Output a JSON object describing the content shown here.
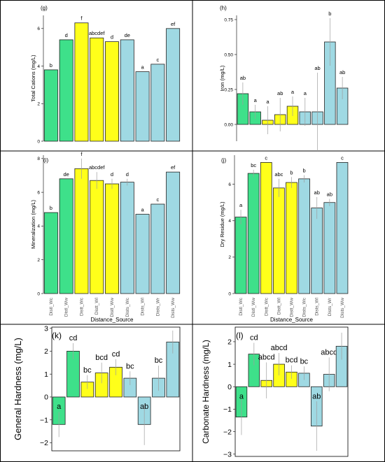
{
  "colors": {
    "green": "#3ee08a",
    "yellow": "#ffff1a",
    "blue": "#9fd9e3",
    "border": "#222222",
    "grid_border": "#000000",
    "error": "#9e9e9e"
  },
  "chart_data": [
    {
      "panel": "(g)",
      "type": "bar",
      "categories": [
        "Distl_Wc",
        "Distl_Ww",
        "Distt_Wc",
        "Distt_Wl",
        "Distt_Ww",
        "Dists_Wc",
        "Dists_Wl",
        "Dists_Wr",
        "Dists_Ww"
      ],
      "bar_colors": [
        "green",
        "green",
        "yellow",
        "yellow",
        "yellow",
        "blue",
        "blue",
        "blue",
        "blue"
      ],
      "values": [
        3.8,
        5.4,
        6.3,
        5.5,
        5.3,
        5.4,
        3.7,
        4.1,
        6.0
      ],
      "errors": [
        0.0,
        0.0,
        0.0,
        0.0,
        0.0,
        0.0,
        0.0,
        0.0,
        0.0
      ],
      "labels": [
        "b",
        "d",
        "f",
        "abcdef",
        "d",
        "de",
        "a",
        "c",
        "ef"
      ],
      "ylabel": "Total Cations (mg/L)",
      "xlabel": "",
      "ylim": [
        0,
        6.7
      ],
      "yticks": [
        0,
        2,
        4,
        6
      ],
      "ytick_labels": [
        "0",
        "2",
        "4",
        "6"
      ],
      "show_x_ticks": false
    },
    {
      "panel": "(h)",
      "type": "bar",
      "categories": [
        "Distl_Wc",
        "Distl_Ww",
        "Distt_Wc",
        "Distt_Wl",
        "Distt_Ww",
        "Dists_Wc",
        "Dists_Wl",
        "Dists_Wr",
        "Dists_Ww"
      ],
      "bar_colors": [
        "green",
        "green",
        "yellow",
        "yellow",
        "yellow",
        "blue",
        "blue",
        "blue",
        "blue"
      ],
      "values": [
        0.22,
        0.09,
        0.03,
        0.07,
        0.13,
        0.09,
        0.09,
        0.59,
        0.26
      ],
      "errors": [
        0.08,
        0.05,
        0.1,
        0.12,
        0.07,
        0.1,
        0.28,
        0.17,
        0.08
      ],
      "labels": [
        "ab",
        "a",
        "a",
        "ab",
        "a",
        "a",
        "ab",
        "b",
        "ab"
      ],
      "ylabel": "Iron (mg/L)",
      "xlabel": "",
      "ylim": [
        -0.12,
        0.78
      ],
      "yticks": [
        0.0,
        0.25,
        0.5,
        0.75
      ],
      "ytick_labels": [
        "0.00",
        "0.25",
        "0.50",
        "0.75"
      ],
      "show_x_ticks": false
    },
    {
      "panel": "(i)",
      "type": "bar",
      "categories": [
        "Distl_Wc",
        "Distl_Ww",
        "Distt_Wc",
        "Distt_Wl",
        "Distt_Ww",
        "Dists_Wc",
        "Dists_Wl",
        "Dists_Wr",
        "Dists_Ww"
      ],
      "bar_colors": [
        "green",
        "green",
        "yellow",
        "yellow",
        "yellow",
        "blue",
        "blue",
        "blue",
        "blue"
      ],
      "values": [
        4.8,
        6.8,
        7.4,
        6.7,
        6.5,
        6.6,
        4.7,
        5.3,
        7.2
      ],
      "errors": [
        0.0,
        0.0,
        0.6,
        0.5,
        0.3,
        0.2,
        0.0,
        0.0,
        0.0
      ],
      "labels": [
        "b",
        "de",
        "f",
        "abcdef",
        "d",
        "d",
        "a",
        "c",
        "ef"
      ],
      "ylabel": "Mineralization (mg/L)",
      "xlabel": "Distance_Source",
      "ylim": [
        0,
        8.2
      ],
      "yticks": [
        0,
        2,
        4,
        6,
        8
      ],
      "ytick_labels": [
        "0",
        "2",
        "4",
        "6",
        "8"
      ],
      "show_x_ticks": true
    },
    {
      "panel": "(j)",
      "type": "bar",
      "categories": [
        "Distl_Wc",
        "Distl_Ww",
        "Distt_Wc",
        "Distt_Wl",
        "Distt_Ww",
        "Dists_Wc",
        "Dists_Wl",
        "Dists_Wr",
        "Dists_Ww"
      ],
      "bar_colors": [
        "green",
        "green",
        "yellow",
        "yellow",
        "yellow",
        "blue",
        "blue",
        "blue",
        "blue"
      ],
      "values": [
        4.2,
        6.6,
        7.2,
        5.8,
        6.1,
        6.3,
        4.7,
        5.0,
        7.2
      ],
      "errors": [
        0.4,
        0.2,
        0.0,
        0.5,
        0.3,
        0.2,
        0.6,
        0.2,
        0.0
      ],
      "labels": [
        "a",
        "bc",
        "c",
        "abc",
        "b",
        "b",
        "ab",
        "ab",
        "c"
      ],
      "ylabel": "Dry Residue (mg/L)",
      "xlabel": "Distance_Source",
      "ylim": [
        0,
        7.6
      ],
      "yticks": [
        0,
        2,
        4,
        6
      ],
      "ytick_labels": [
        "0",
        "2",
        "4",
        "6"
      ],
      "show_x_ticks": true
    },
    {
      "panel": "(k)",
      "type": "bar",
      "categories": [
        "Distl_Wc",
        "Distl_Ww",
        "Distt_Wc",
        "Distt_Wl",
        "Distt_Ww",
        "Dists_Wc",
        "Dists_Wl",
        "Dists_Wr",
        "Dists_Ww"
      ],
      "bar_colors": [
        "green",
        "green",
        "yellow",
        "yellow",
        "yellow",
        "blue",
        "blue",
        "blue",
        "blue"
      ],
      "values": [
        -1.2,
        2.0,
        0.65,
        1.05,
        1.3,
        0.82,
        -1.2,
        0.82,
        2.4
      ],
      "errors": [
        0.55,
        0.35,
        0.3,
        0.45,
        0.35,
        0.3,
        0.9,
        0.55,
        0.5
      ],
      "labels": [
        "a",
        "cd",
        "bc",
        "bcd",
        "cd",
        "bc",
        "ab",
        "bc",
        ""
      ],
      "ylabel": "General Hardness (mg/L)",
      "xlabel": "",
      "ylim": [
        -2.35,
        3.05
      ],
      "yticks": [
        -2,
        -1,
        0,
        1,
        2,
        3
      ],
      "ytick_labels": [
        "−2",
        "−1",
        "0",
        "1",
        "2",
        "3"
      ],
      "show_x_ticks": false
    },
    {
      "panel": "(l)",
      "type": "bar",
      "categories": [
        "Distl_Wc",
        "Distl_Ww",
        "Distt_Wc",
        "Distt_Wl",
        "Distt_Ww",
        "Dists_Wc",
        "Dists_Wl",
        "Dists_Wr",
        "Dists_Ww"
      ],
      "bar_colors": [
        "green",
        "green",
        "yellow",
        "yellow",
        "yellow",
        "blue",
        "blue",
        "blue",
        "blue"
      ],
      "values": [
        -1.35,
        1.45,
        0.28,
        1.0,
        0.65,
        0.6,
        -1.75,
        0.55,
        1.8
      ],
      "errors": [
        0.8,
        0.5,
        0.8,
        0.5,
        0.3,
        0.3,
        1.1,
        0.75,
        0.6
      ],
      "labels": [
        "a",
        "cd",
        "abcd",
        "abcd",
        "bcd",
        "bc",
        "ab",
        "abcd",
        ""
      ],
      "ylabel": "Carbonate Hardness (mg/L)",
      "xlabel": "",
      "ylim": [
        -3.1,
        2.65
      ],
      "yticks": [
        -3,
        -2,
        -1,
        0,
        1,
        2
      ],
      "ytick_labels": [
        "−3",
        "−2",
        "−1",
        "0",
        "1",
        "2"
      ],
      "show_x_ticks": false
    }
  ]
}
